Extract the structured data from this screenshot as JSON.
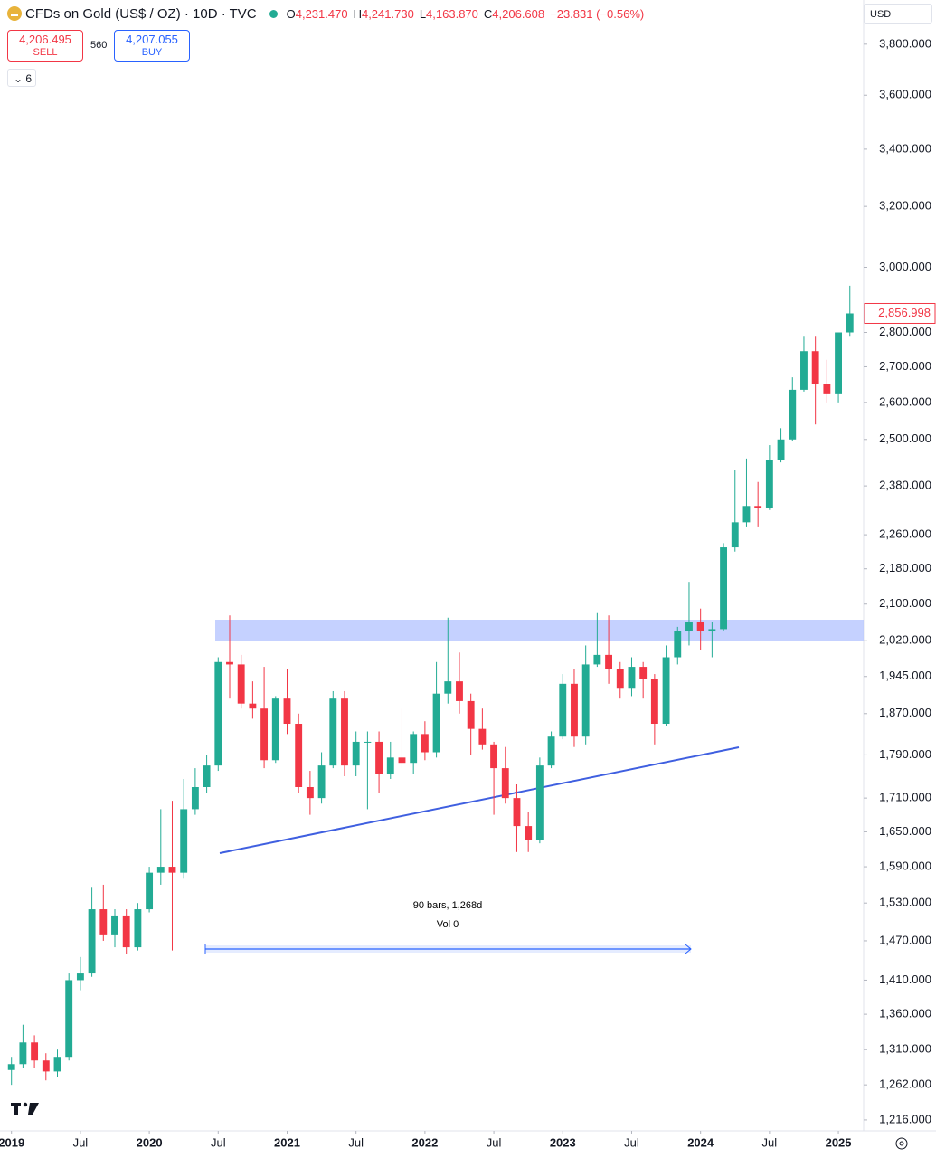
{
  "chart_data": {
    "type": "candlestick",
    "title": "CFDs on Gold (US$ / OZ) · 10D · TVC",
    "quote": [
      {
        "key": "O",
        "value": "4,231.470"
      },
      {
        "key": "H",
        "value": "4,241.730"
      },
      {
        "key": "L",
        "value": "4,163.870"
      },
      {
        "key": "C",
        "value": "4,206.608"
      }
    ],
    "change": "−23.831 (−0.56%)",
    "sell": {
      "price": "4,206.495",
      "label": "SELL"
    },
    "buy": {
      "price": "4,207.055",
      "label": "BUY"
    },
    "spread": "560",
    "indicators": "6",
    "currency": "USD",
    "measure": {
      "bars": "90 bars, 1,268d",
      "volume": "Vol 0"
    },
    "last_price": {
      "value": 2856.998,
      "label": "2,856.998"
    },
    "log_scale": true,
    "up_color": "#22ab94",
    "down_color": "#f23645",
    "xlim": [
      -1,
      74.2
    ],
    "ylim": [
      1202,
      3982
    ],
    "xticks": [
      {
        "value": 0,
        "label": "2019"
      },
      {
        "value": 6,
        "label": "Jul"
      },
      {
        "value": 12,
        "label": "2020"
      },
      {
        "value": 18,
        "label": "Jul"
      },
      {
        "value": 24,
        "label": "2021"
      },
      {
        "value": 30,
        "label": "Jul"
      },
      {
        "value": 36,
        "label": "2022"
      },
      {
        "value": 42,
        "label": "Jul"
      },
      {
        "value": 48,
        "label": "2023"
      },
      {
        "value": 54,
        "label": "Jul"
      },
      {
        "value": 60,
        "label": "2024"
      },
      {
        "value": 66,
        "label": "Jul"
      },
      {
        "value": 72,
        "label": "2025"
      }
    ],
    "yticks": [
      {
        "value": 1216,
        "label": "1,216.000"
      },
      {
        "value": 1262,
        "label": "1,262.000"
      },
      {
        "value": 1310,
        "label": "1,310.000"
      },
      {
        "value": 1360,
        "label": "1,360.000"
      },
      {
        "value": 1410,
        "label": "1,410.000"
      },
      {
        "value": 1470,
        "label": "1,470.000"
      },
      {
        "value": 1530,
        "label": "1,530.000"
      },
      {
        "value": 1590,
        "label": "1,590.000"
      },
      {
        "value": 1650,
        "label": "1,650.000"
      },
      {
        "value": 1710,
        "label": "1,710.000"
      },
      {
        "value": 1790,
        "label": "1,790.000"
      },
      {
        "value": 1870,
        "label": "1,870.000"
      },
      {
        "value": 1945,
        "label": "1,945.000"
      },
      {
        "value": 2020,
        "label": "2,020.000"
      },
      {
        "value": 2100,
        "label": "2,100.000"
      },
      {
        "value": 2180,
        "label": "2,180.000"
      },
      {
        "value": 2260,
        "label": "2,260.000"
      },
      {
        "value": 2380,
        "label": "2,380.000"
      },
      {
        "value": 2500,
        "label": "2,500.000"
      },
      {
        "value": 2600,
        "label": "2,600.000"
      },
      {
        "value": 2700,
        "label": "2,700.000"
      },
      {
        "value": 2800,
        "label": "2,800.000"
      },
      {
        "value": 3000,
        "label": "3,000.000"
      },
      {
        "value": 3200,
        "label": "3,200.000"
      },
      {
        "value": 3400,
        "label": "3,400.000"
      },
      {
        "value": 3600,
        "label": "3,600.000"
      },
      {
        "value": 3800,
        "label": "3,800.000"
      }
    ],
    "candles": [
      [
        1282,
        1300,
        1262,
        1290
      ],
      [
        1290,
        1345,
        1285,
        1320
      ],
      [
        1320,
        1330,
        1285,
        1295
      ],
      [
        1295,
        1305,
        1268,
        1280
      ],
      [
        1280,
        1310,
        1272,
        1300
      ],
      [
        1300,
        1420,
        1295,
        1410
      ],
      [
        1410,
        1445,
        1395,
        1420
      ],
      [
        1420,
        1555,
        1415,
        1520
      ],
      [
        1520,
        1560,
        1470,
        1480
      ],
      [
        1480,
        1520,
        1460,
        1510
      ],
      [
        1510,
        1520,
        1450,
        1460
      ],
      [
        1460,
        1530,
        1455,
        1520
      ],
      [
        1520,
        1590,
        1515,
        1580
      ],
      [
        1580,
        1690,
        1560,
        1590
      ],
      [
        1590,
        1705,
        1455,
        1580
      ],
      [
        1580,
        1745,
        1570,
        1690
      ],
      [
        1690,
        1765,
        1680,
        1730
      ],
      [
        1730,
        1790,
        1720,
        1770
      ],
      [
        1770,
        1985,
        1760,
        1975
      ],
      [
        1975,
        2075,
        1900,
        1970
      ],
      [
        1970,
        1990,
        1880,
        1890
      ],
      [
        1890,
        1935,
        1860,
        1880
      ],
      [
        1880,
        1965,
        1765,
        1780
      ],
      [
        1780,
        1905,
        1775,
        1900
      ],
      [
        1900,
        1960,
        1830,
        1850
      ],
      [
        1850,
        1870,
        1720,
        1730
      ],
      [
        1730,
        1760,
        1680,
        1710
      ],
      [
        1710,
        1795,
        1700,
        1770
      ],
      [
        1770,
        1915,
        1765,
        1900
      ],
      [
        1900,
        1915,
        1750,
        1770
      ],
      [
        1770,
        1835,
        1750,
        1815
      ],
      [
        1815,
        1835,
        1690,
        1815
      ],
      [
        1815,
        1835,
        1720,
        1755
      ],
      [
        1755,
        1815,
        1745,
        1785
      ],
      [
        1785,
        1880,
        1765,
        1775
      ],
      [
        1775,
        1835,
        1755,
        1830
      ],
      [
        1830,
        1855,
        1780,
        1795
      ],
      [
        1795,
        1975,
        1785,
        1910
      ],
      [
        1910,
        2070,
        1890,
        1935
      ],
      [
        1935,
        1995,
        1870,
        1895
      ],
      [
        1895,
        1910,
        1790,
        1840
      ],
      [
        1840,
        1880,
        1800,
        1810
      ],
      [
        1810,
        1815,
        1680,
        1765
      ],
      [
        1765,
        1805,
        1700,
        1710
      ],
      [
        1710,
        1735,
        1615,
        1660
      ],
      [
        1660,
        1685,
        1615,
        1635
      ],
      [
        1635,
        1785,
        1630,
        1770
      ],
      [
        1770,
        1835,
        1765,
        1825
      ],
      [
        1825,
        1950,
        1820,
        1930
      ],
      [
        1930,
        1960,
        1805,
        1825
      ],
      [
        1825,
        2010,
        1810,
        1970
      ],
      [
        1970,
        2080,
        1965,
        1990
      ],
      [
        1990,
        2075,
        1930,
        1960
      ],
      [
        1960,
        1975,
        1900,
        1920
      ],
      [
        1920,
        1985,
        1905,
        1965
      ],
      [
        1965,
        1975,
        1900,
        1940
      ],
      [
        1940,
        1950,
        1810,
        1850
      ],
      [
        1850,
        2010,
        1845,
        1985
      ],
      [
        1985,
        2050,
        1970,
        2040
      ],
      [
        2040,
        2150,
        2010,
        2060
      ],
      [
        2060,
        2090,
        2000,
        2040
      ],
      [
        2040,
        2060,
        1985,
        2045
      ],
      [
        2045,
        2240,
        2040,
        2230
      ],
      [
        2230,
        2420,
        2220,
        2290
      ],
      [
        2290,
        2450,
        2280,
        2330
      ],
      [
        2330,
        2390,
        2280,
        2325
      ],
      [
        2325,
        2485,
        2320,
        2445
      ],
      [
        2445,
        2530,
        2440,
        2500
      ],
      [
        2500,
        2670,
        2495,
        2635
      ],
      [
        2635,
        2790,
        2630,
        2745
      ],
      [
        2745,
        2790,
        2540,
        2650
      ],
      [
        2650,
        2720,
        2600,
        2625
      ],
      [
        2625,
        2800,
        2600,
        2800
      ],
      [
        2800,
        2942,
        2790,
        2857
      ]
    ]
  }
}
